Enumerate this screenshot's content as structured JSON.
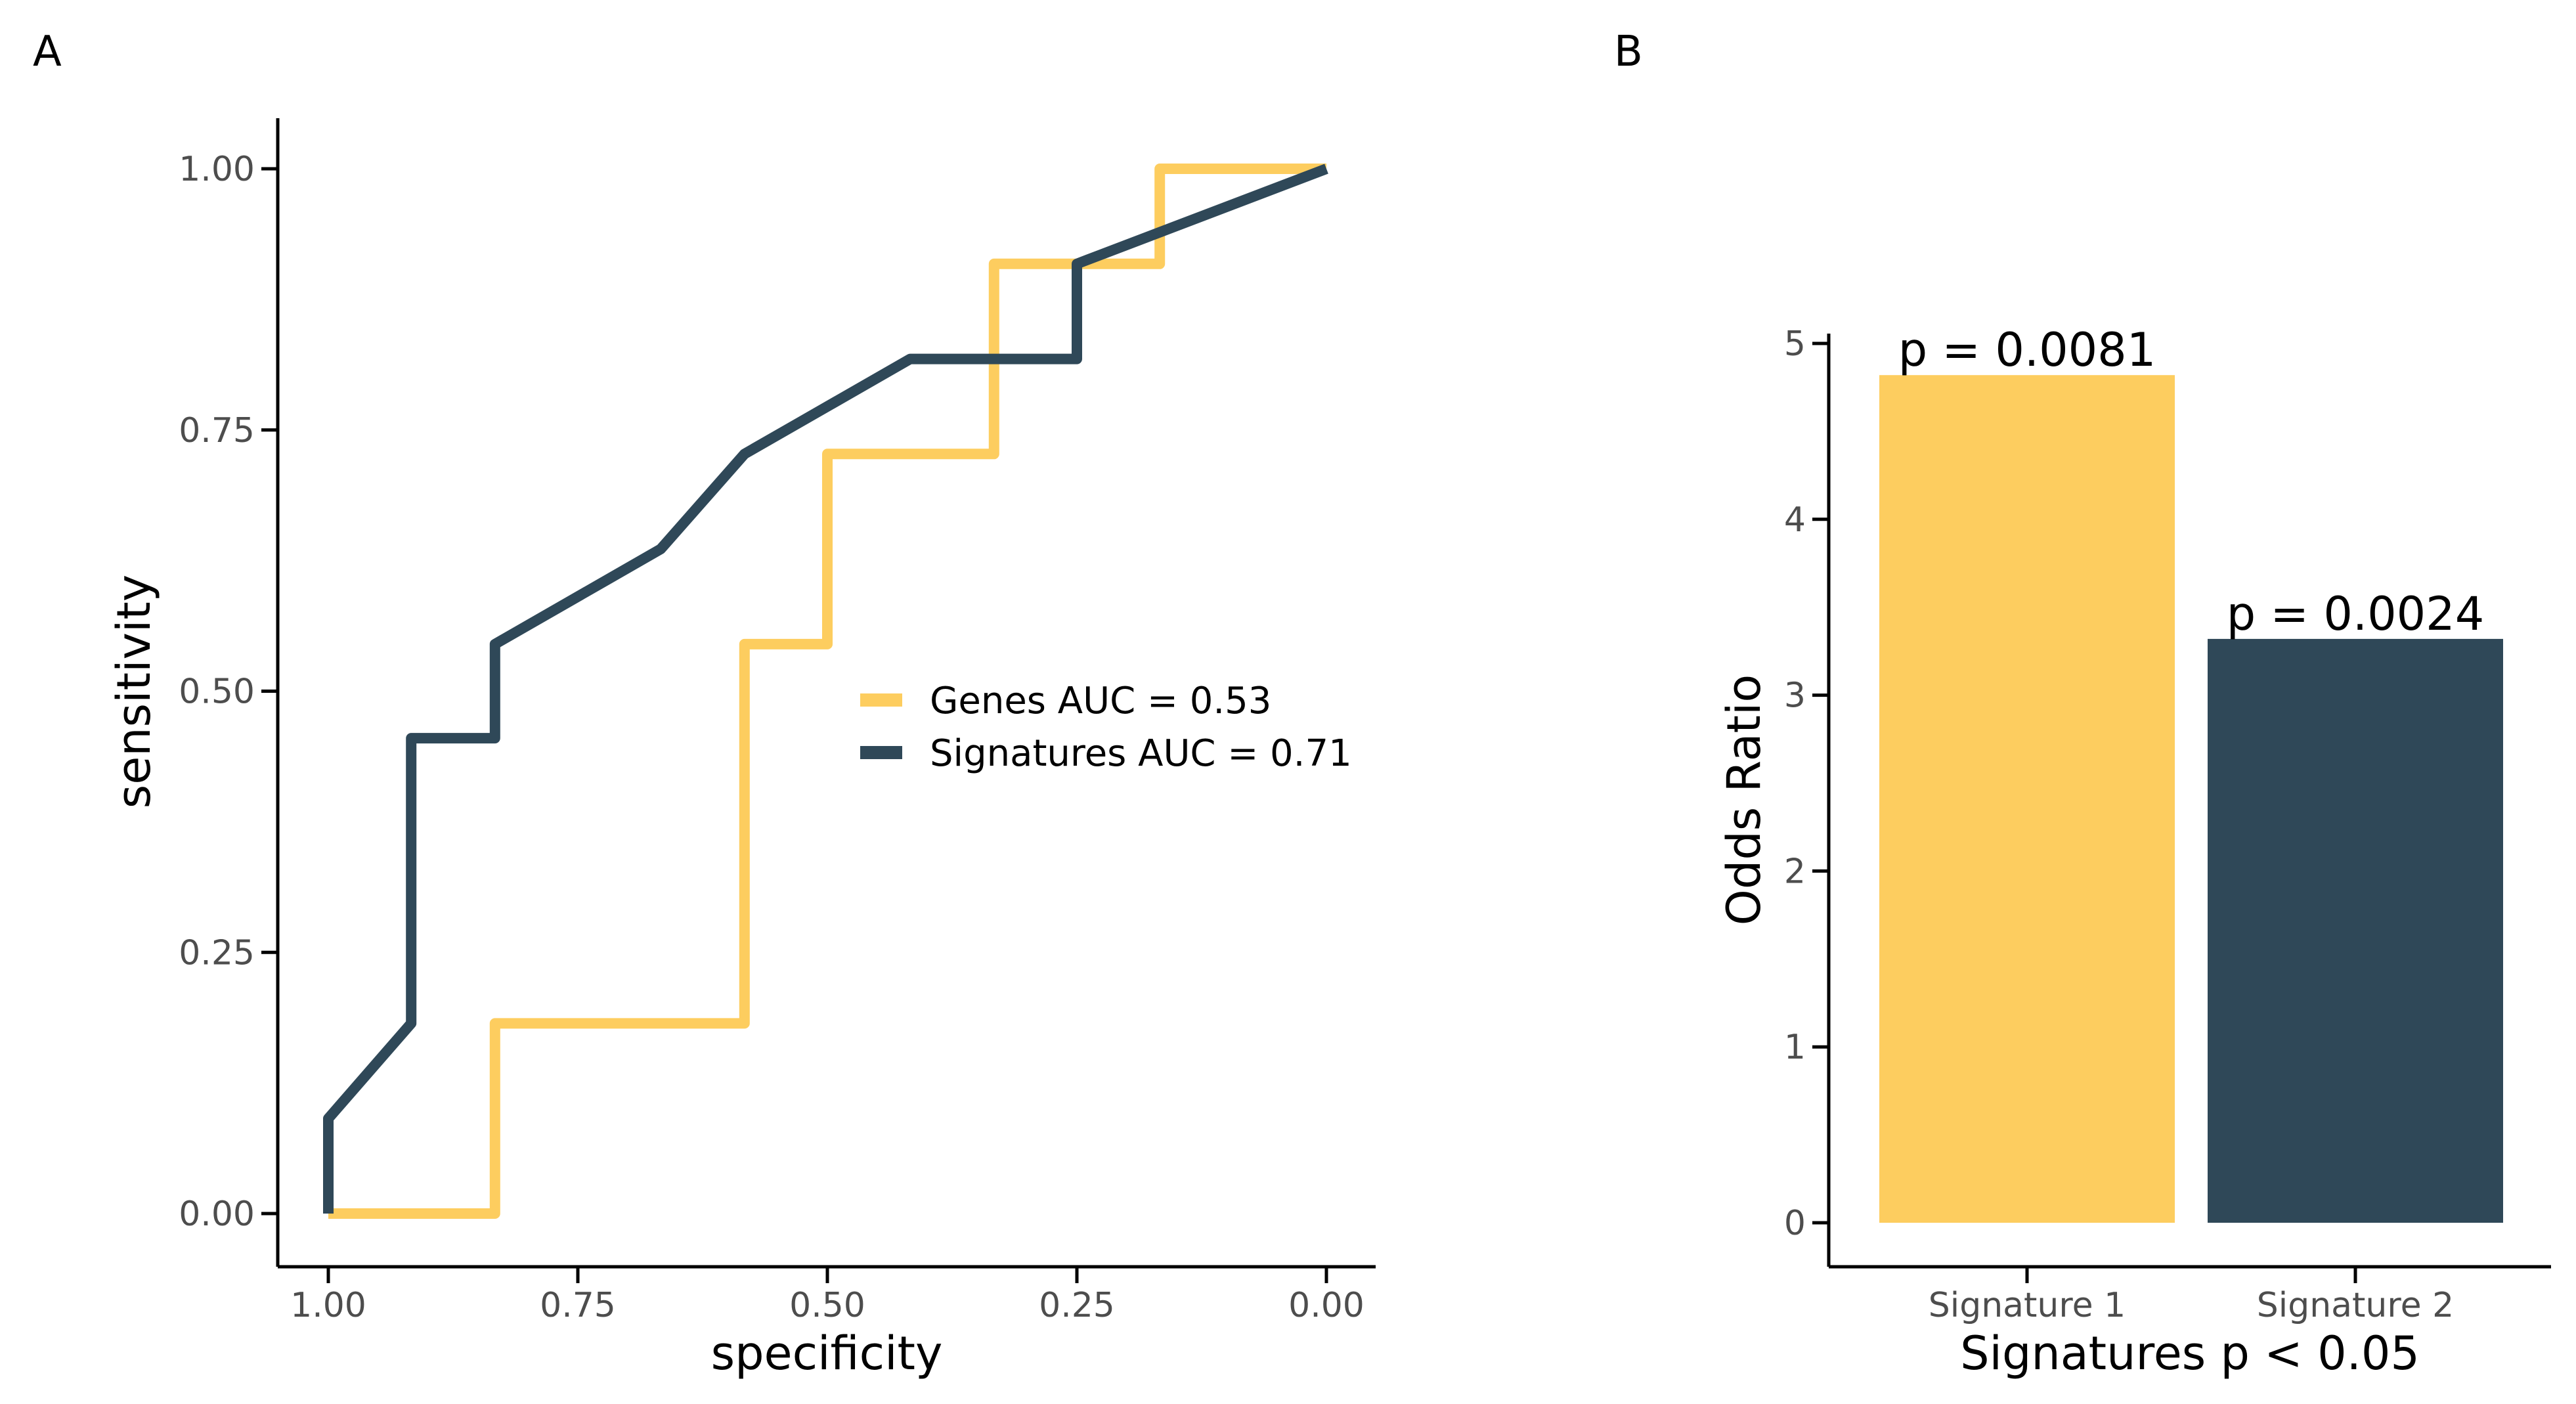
{
  "panels": {
    "a": {
      "label": "A"
    },
    "b": {
      "label": "B"
    }
  },
  "colors": {
    "genes": "#FDCD5F",
    "signatures": "#2F4858",
    "signature_1": "#FDCD5F",
    "signature_2": "#2F4858"
  },
  "chart_data": [
    {
      "type": "line",
      "panel": "A",
      "xlabel": "specificity",
      "ylabel": "sensitivity",
      "xlim": [
        1.0,
        0.0
      ],
      "x_reversed": true,
      "ylim": [
        0.0,
        1.0
      ],
      "xticks": [
        "1.00",
        "0.75",
        "0.50",
        "0.25",
        "0.00"
      ],
      "yticks": [
        "0.00",
        "0.25",
        "0.50",
        "0.75",
        "1.00"
      ],
      "grid": false,
      "legend_position": "right-middle",
      "series": [
        {
          "name": "Genes AUC = 0.53",
          "color": "#FDCD5F",
          "points": [
            [
              1.0,
              0.0
            ],
            [
              0.833,
              0.0
            ],
            [
              0.833,
              0.182
            ],
            [
              0.583,
              0.182
            ],
            [
              0.583,
              0.545
            ],
            [
              0.5,
              0.545
            ],
            [
              0.5,
              0.727
            ],
            [
              0.333,
              0.727
            ],
            [
              0.333,
              0.909
            ],
            [
              0.167,
              0.909
            ],
            [
              0.167,
              1.0
            ],
            [
              0.0,
              1.0
            ]
          ]
        },
        {
          "name": "Signatures AUC = 0.71",
          "color": "#2F4858",
          "points": [
            [
              1.0,
              0.0
            ],
            [
              1.0,
              0.091
            ],
            [
              0.917,
              0.182
            ],
            [
              0.917,
              0.455
            ],
            [
              0.833,
              0.455
            ],
            [
              0.833,
              0.545
            ],
            [
              0.667,
              0.636
            ],
            [
              0.583,
              0.727
            ],
            [
              0.417,
              0.818
            ],
            [
              0.25,
              0.818
            ],
            [
              0.25,
              0.909
            ],
            [
              0.0,
              1.0
            ]
          ]
        }
      ]
    },
    {
      "type": "bar",
      "panel": "B",
      "xlabel": "Signatures p < 0.05",
      "ylabel": "Odds Ratio",
      "categories": [
        "Signature 1",
        "Signature 2"
      ],
      "values": [
        4.82,
        3.32
      ],
      "bar_labels": [
        "p = 0.0081",
        "p = 0.0024"
      ],
      "colors": [
        "#FDCD5F",
        "#2F4858"
      ],
      "ylim": [
        0,
        5
      ],
      "yticks": [
        "0",
        "1",
        "2",
        "3",
        "4",
        "5"
      ],
      "grid": false
    }
  ]
}
